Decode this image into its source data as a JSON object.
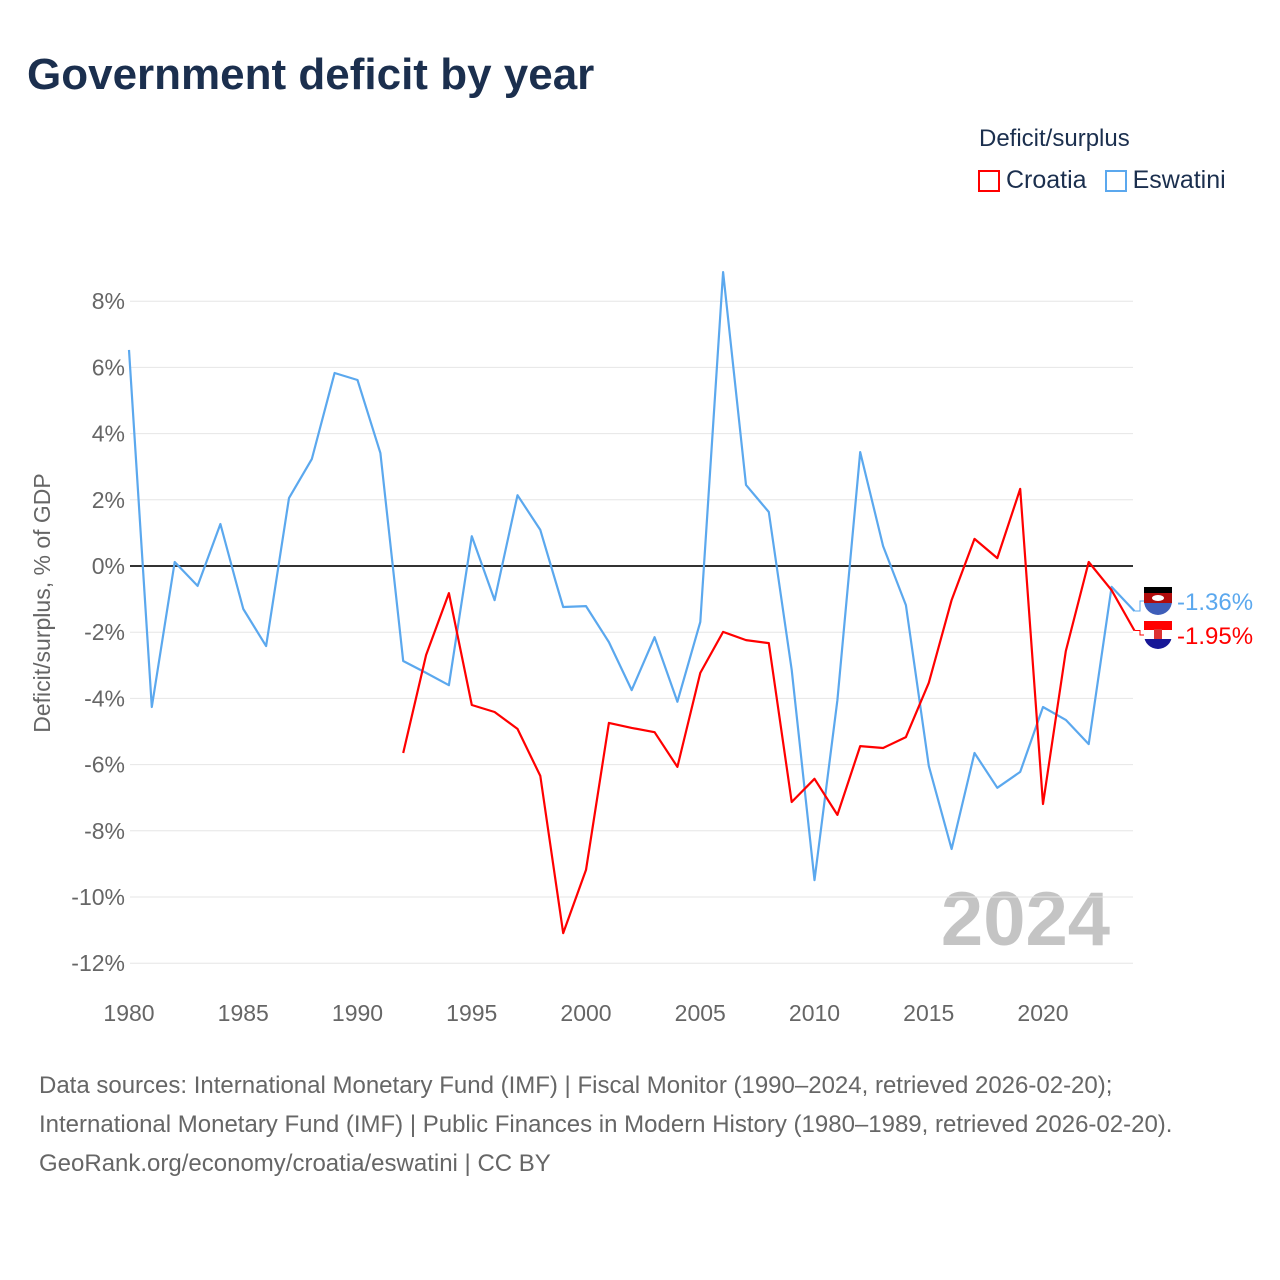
{
  "title": "Government deficit by year",
  "legend": {
    "title": "Deficit/surplus",
    "items": [
      {
        "name": "Croatia",
        "color": "#ff0000"
      },
      {
        "name": "Eswatini",
        "color": "#5ba8ee"
      }
    ]
  },
  "footer": {
    "line1": "Data sources: International Monetary Fund (IMF) | Fiscal Monitor (1990–2024, retrieved 2026-02-20); International Monetary Fund (IMF) | Public Finances in Modern History (1980–1989, retrieved 2026-02-20).",
    "line2": "GeoRank.org/economy/croatia/eswatini | CC BY"
  },
  "chart_data": {
    "type": "line",
    "title": "Government deficit by year",
    "ylabel": "Deficit/surplus, % of GDP",
    "xlabel": "",
    "year_watermark": "2024",
    "xlim": [
      1980,
      2024
    ],
    "ylim": [
      -13,
      9
    ],
    "xticks": [
      1980,
      1985,
      1990,
      1995,
      2000,
      2005,
      2010,
      2015,
      2020
    ],
    "yticks": [
      {
        "v": 8,
        "label": "8%"
      },
      {
        "v": 6,
        "label": "6%"
      },
      {
        "v": 4,
        "label": "4%"
      },
      {
        "v": 2,
        "label": "2%"
      },
      {
        "v": 0,
        "label": "0%"
      },
      {
        "v": -2,
        "label": "-2%"
      },
      {
        "v": -4,
        "label": "-4%"
      },
      {
        "v": -6,
        "label": "-6%"
      },
      {
        "v": -8,
        "label": "-8%"
      },
      {
        "v": -10,
        "label": "-10%"
      },
      {
        "v": -12,
        "label": "-12%"
      }
    ],
    "series": [
      {
        "name": "Eswatini",
        "color": "#5ba8ee",
        "end_label": "-1.36%",
        "start": 1980,
        "values": [
          6.53,
          -4.26,
          0.12,
          -0.6,
          1.27,
          -1.3,
          -2.42,
          2.05,
          3.23,
          5.83,
          5.62,
          3.41,
          -2.87,
          -3.23,
          -3.6,
          0.9,
          -1.03,
          2.14,
          1.09,
          -1.24,
          -1.21,
          -2.3,
          -3.75,
          -2.15,
          -4.1,
          -1.69,
          8.88,
          2.45,
          1.63,
          -3.14,
          -9.49,
          -4.05,
          3.44,
          0.6,
          -1.18,
          -6.04,
          -8.55,
          -5.65,
          -6.7,
          -6.22,
          -4.26,
          -4.65,
          -5.38,
          -0.63,
          -1.36
        ]
      },
      {
        "name": "Croatia",
        "color": "#ff0000",
        "end_label": "-1.95%",
        "start": 1992,
        "values": [
          -5.65,
          -2.69,
          -0.82,
          -4.2,
          -4.41,
          -4.92,
          -6.34,
          -11.09,
          -9.18,
          -4.74,
          -4.89,
          -5.02,
          -6.07,
          -3.23,
          -1.99,
          -2.24,
          -2.33,
          -7.13,
          -6.43,
          -7.52,
          -5.44,
          -5.5,
          -5.17,
          -3.53,
          -1.03,
          0.82,
          0.24,
          2.33,
          -7.19,
          -2.57,
          0.12,
          -0.73,
          -1.95
        ]
      }
    ]
  }
}
